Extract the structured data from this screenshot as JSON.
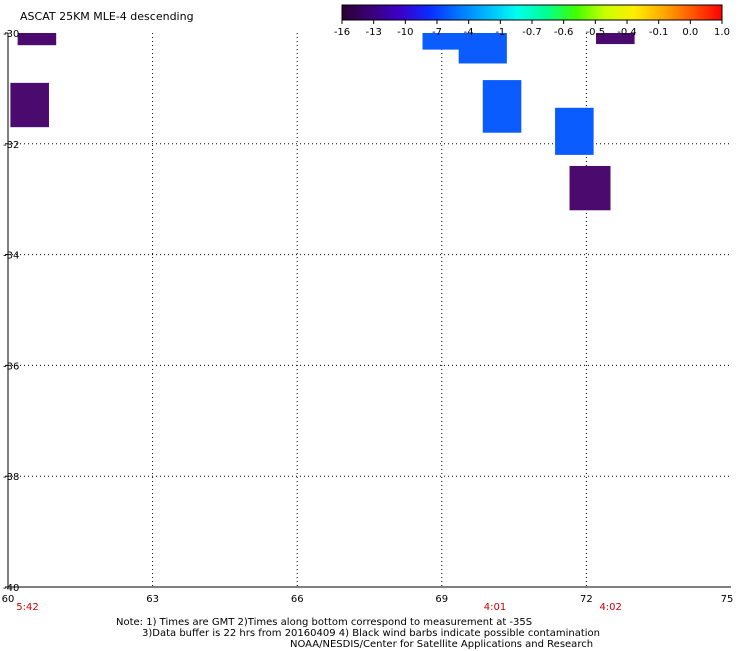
{
  "title": "ASCAT 25KM MLE-4 descending",
  "colorbar": {
    "labels": [
      "-16",
      "-13",
      "-10",
      "-7",
      "-4",
      "-1",
      "-0.7",
      "-0.6",
      "-0.5",
      "-0.4",
      "-0.1",
      "0.0",
      "1.0"
    ],
    "gradient": [
      "#2a0030",
      "#3a0078",
      "#3b00c8",
      "#0a2cff",
      "#0077ff",
      "#00bbff",
      "#00ffee",
      "#00ff90",
      "#40ff00",
      "#c8ff00",
      "#ffee00",
      "#ffaa00",
      "#ff5500",
      "#ff0000"
    ]
  },
  "axes": {
    "y_ticks": [
      "-30",
      "-32",
      "-34",
      "-36",
      "-38",
      "-40"
    ],
    "x_ticks": [
      "60",
      "63",
      "66",
      "69",
      "72",
      "75"
    ],
    "lon_range": [
      60,
      75
    ],
    "lat_range": [
      -40,
      -30
    ]
  },
  "pass_times": [
    {
      "lon": 60.3,
      "label": "5:42"
    },
    {
      "lon": 70.0,
      "label": "4:01"
    },
    {
      "lon": 72.4,
      "label": "4:02"
    }
  ],
  "cells": [
    {
      "lon": [
        60.2,
        61.0
      ],
      "lat": [
        -30.22,
        -30.0
      ],
      "value": -16
    },
    {
      "lon": [
        60.05,
        60.85
      ],
      "lat": [
        -31.7,
        -30.9
      ],
      "value": -16
    },
    {
      "lon": [
        68.6,
        69.4
      ],
      "lat": [
        -30.3,
        -30.0
      ],
      "value": -7
    },
    {
      "lon": [
        69.35,
        70.35
      ],
      "lat": [
        -30.55,
        -30.0
      ],
      "value": -7
    },
    {
      "lon": [
        69.85,
        70.65
      ],
      "lat": [
        -31.8,
        -30.85
      ],
      "value": -7
    },
    {
      "lon": [
        71.35,
        72.15
      ],
      "lat": [
        -32.2,
        -31.35
      ],
      "value": -7
    },
    {
      "lon": [
        71.65,
        72.5
      ],
      "lat": [
        -33.2,
        -32.4
      ],
      "value": -16
    },
    {
      "lon": [
        72.2,
        73.0
      ],
      "lat": [
        -30.2,
        -30.0
      ],
      "value": -16
    }
  ],
  "cell_colors": {
    "-16": "#4a0a6e",
    "-7": "#0a5cff"
  },
  "notes": {
    "line1": "Note: 1) Times are GMT 2)Times along bottom correspond to measurement at -35S",
    "line2": "3)Data buffer is 22 hrs from 20160409 4) Black wind barbs indicate possible contamination",
    "line3": "NOAA/NESDIS/Center for Satellite Applications and Research"
  }
}
